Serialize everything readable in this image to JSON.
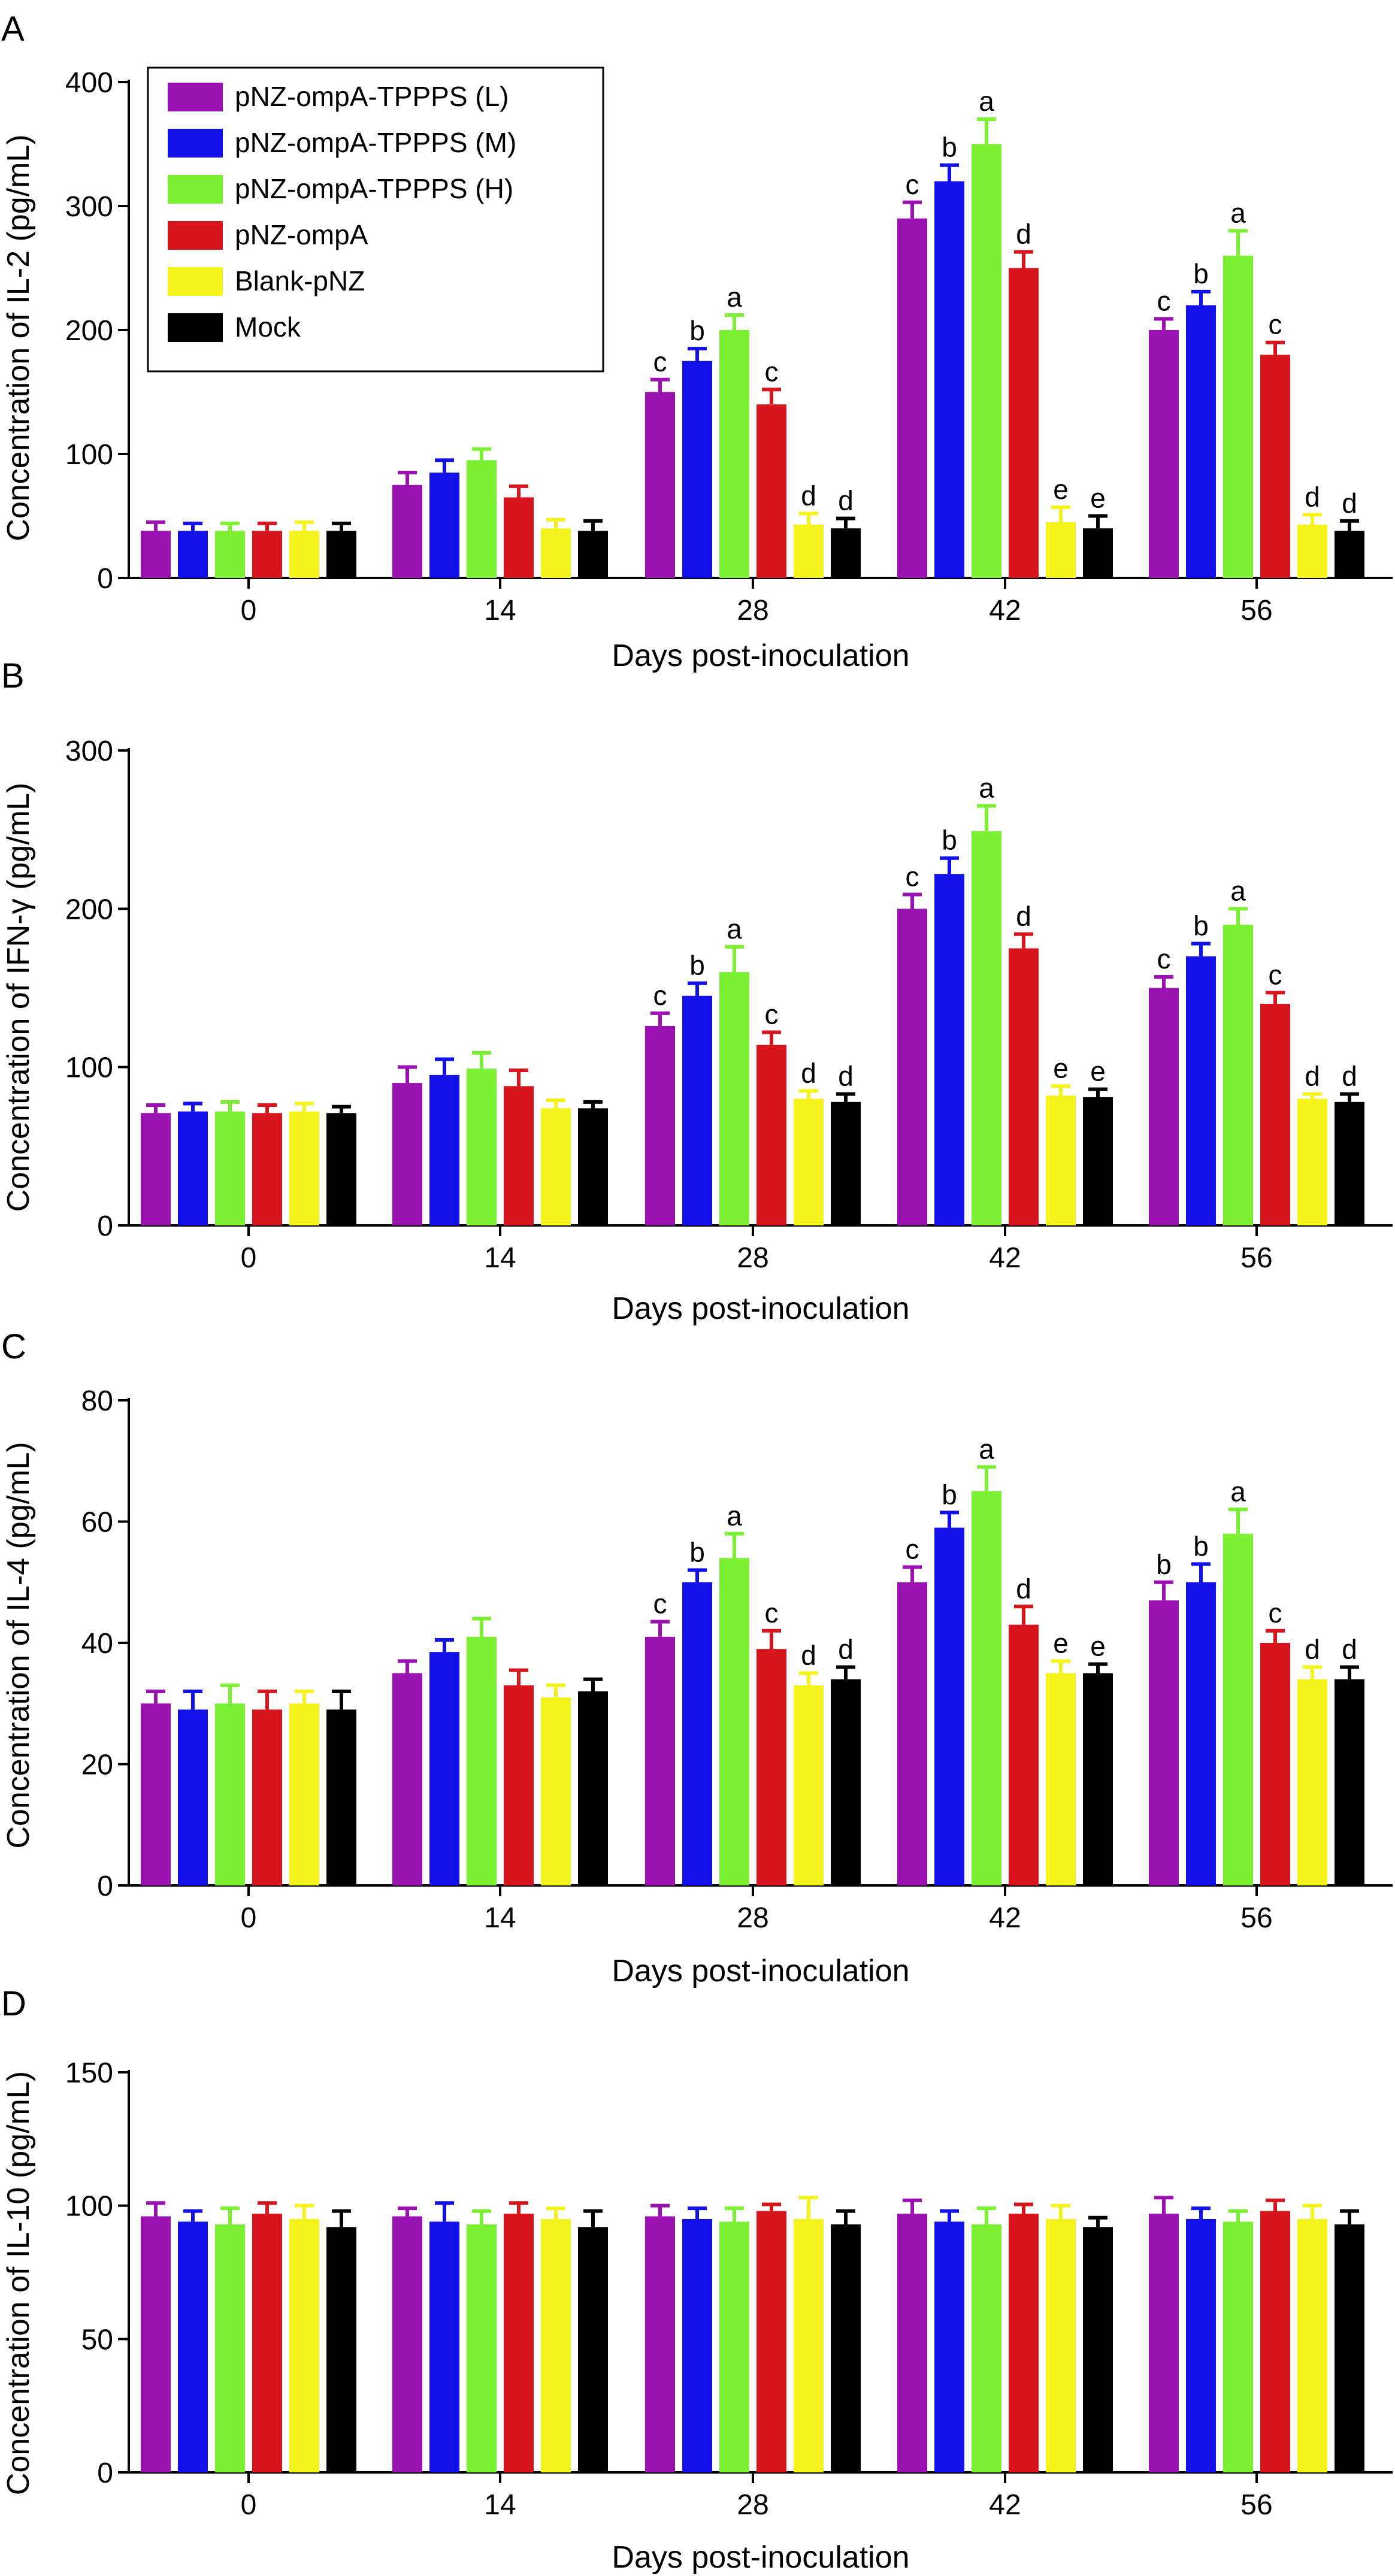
{
  "series_meta": [
    {
      "name": "pNZ-ompA-TPPPS (L)",
      "color": "#9b10b0"
    },
    {
      "name": "pNZ-ompA-TPPPS (M)",
      "color": "#1212e8"
    },
    {
      "name": "pNZ-ompA-TPPPS (H)",
      "color": "#7cf032"
    },
    {
      "name": "pNZ-ompA",
      "color": "#d6161c"
    },
    {
      "name": "Blank-pNZ",
      "color": "#f4f41c"
    },
    {
      "name": "Mock",
      "color": "#000000"
    }
  ],
  "chart_data": [
    {
      "type": "bar",
      "panel": "A",
      "title": "",
      "xlabel": "Days post-inoculation",
      "ylabel": "Concentration of IL-2 (pg/mL)",
      "ylim": [
        0,
        400
      ],
      "yticks": [
        0,
        100,
        200,
        300,
        400
      ],
      "categories": [
        "0",
        "14",
        "28",
        "42",
        "56"
      ],
      "legend": "top-left",
      "series": [
        {
          "name": "pNZ-ompA-TPPPS (L)",
          "values": [
            38,
            75,
            150,
            290,
            200
          ],
          "errors": [
            7,
            10,
            10,
            13,
            9
          ],
          "labels": [
            "",
            "",
            "c",
            "c",
            "c"
          ]
        },
        {
          "name": "pNZ-ompA-TPPPS (M)",
          "values": [
            38,
            85,
            175,
            320,
            220
          ],
          "errors": [
            6,
            10,
            10,
            13,
            11
          ],
          "labels": [
            "",
            "",
            "b",
            "b",
            "b"
          ]
        },
        {
          "name": "pNZ-ompA-TPPPS (H)",
          "values": [
            38,
            95,
            200,
            350,
            260
          ],
          "errors": [
            6,
            9,
            12,
            20,
            20
          ],
          "labels": [
            "",
            "",
            "a",
            "a",
            "a"
          ]
        },
        {
          "name": "pNZ-ompA",
          "values": [
            38,
            65,
            140,
            250,
            180
          ],
          "errors": [
            6,
            9,
            12,
            13,
            10
          ],
          "labels": [
            "",
            "",
            "c",
            "d",
            "c"
          ]
        },
        {
          "name": "Blank-pNZ",
          "values": [
            38,
            40,
            43,
            45,
            43
          ],
          "errors": [
            7,
            7,
            9,
            12,
            8
          ],
          "labels": [
            "",
            "",
            "d",
            "e",
            "d"
          ]
        },
        {
          "name": "Mock",
          "values": [
            38,
            38,
            40,
            40,
            38
          ],
          "errors": [
            6,
            8,
            8,
            10,
            8
          ],
          "labels": [
            "",
            "",
            "d",
            "e",
            "d"
          ]
        }
      ]
    },
    {
      "type": "bar",
      "panel": "B",
      "title": "",
      "xlabel": "Days post-inoculation",
      "ylabel": "Concentration of IFN-γ (pg/mL)",
      "ylim": [
        0,
        300
      ],
      "yticks": [
        0,
        100,
        200,
        300
      ],
      "categories": [
        "0",
        "14",
        "28",
        "42",
        "56"
      ],
      "legend": "none",
      "series": [
        {
          "name": "pNZ-ompA-TPPPS (L)",
          "values": [
            71,
            90,
            126,
            200,
            150
          ],
          "errors": [
            5,
            10,
            8,
            9,
            7
          ],
          "labels": [
            "",
            "",
            "c",
            "c",
            "c"
          ]
        },
        {
          "name": "pNZ-ompA-TPPPS (M)",
          "values": [
            72,
            95,
            145,
            222,
            170
          ],
          "errors": [
            5,
            10,
            8,
            10,
            8
          ],
          "labels": [
            "",
            "",
            "b",
            "b",
            "b"
          ]
        },
        {
          "name": "pNZ-ompA-TPPPS (H)",
          "values": [
            72,
            99,
            160,
            249,
            190
          ],
          "errors": [
            6,
            10,
            16,
            16,
            10
          ],
          "labels": [
            "",
            "",
            "a",
            "a",
            "a"
          ]
        },
        {
          "name": "pNZ-ompA",
          "values": [
            71,
            88,
            114,
            175,
            140
          ],
          "errors": [
            5,
            10,
            8,
            9,
            7
          ],
          "labels": [
            "",
            "",
            "c",
            "d",
            "c"
          ]
        },
        {
          "name": "Blank-pNZ",
          "values": [
            72,
            74,
            80,
            82,
            80
          ],
          "errors": [
            5,
            5,
            5,
            6,
            3
          ],
          "labels": [
            "",
            "",
            "d",
            "e",
            "d"
          ]
        },
        {
          "name": "Mock",
          "values": [
            71,
            74,
            78,
            81,
            78
          ],
          "errors": [
            4,
            4,
            5,
            5,
            5
          ],
          "labels": [
            "",
            "",
            "d",
            "e",
            "d"
          ]
        }
      ]
    },
    {
      "type": "bar",
      "panel": "C",
      "title": "",
      "xlabel": "Days post-inoculation",
      "ylabel": "Concentration of IL-4 (pg/mL)",
      "ylim": [
        0,
        80
      ],
      "yticks": [
        0,
        20,
        40,
        60,
        80
      ],
      "categories": [
        "0",
        "14",
        "28",
        "42",
        "56"
      ],
      "legend": "none",
      "series": [
        {
          "name": "pNZ-ompA-TPPPS (L)",
          "values": [
            30,
            35,
            41,
            50,
            47
          ],
          "errors": [
            2,
            2,
            2.5,
            2.5,
            3
          ],
          "labels": [
            "",
            "",
            "c",
            "c",
            "b"
          ]
        },
        {
          "name": "pNZ-ompA-TPPPS (M)",
          "values": [
            29,
            38.5,
            50,
            59,
            50
          ],
          "errors": [
            3,
            2,
            2,
            2.5,
            3
          ],
          "labels": [
            "",
            "",
            "b",
            "b",
            "b"
          ]
        },
        {
          "name": "pNZ-ompA-TPPPS (H)",
          "values": [
            30,
            41,
            54,
            65,
            58
          ],
          "errors": [
            3,
            3,
            4,
            4,
            4
          ],
          "labels": [
            "",
            "",
            "a",
            "a",
            "a"
          ]
        },
        {
          "name": "pNZ-ompA",
          "values": [
            29,
            33,
            39,
            43,
            40
          ],
          "errors": [
            3,
            2.5,
            3,
            3,
            2
          ],
          "labels": [
            "",
            "",
            "c",
            "d",
            "c"
          ]
        },
        {
          "name": "Blank-pNZ",
          "values": [
            30,
            31,
            33,
            35,
            34
          ],
          "errors": [
            2,
            2,
            2,
            2,
            2
          ],
          "labels": [
            "",
            "",
            "d",
            "e",
            "d"
          ]
        },
        {
          "name": "Mock",
          "values": [
            29,
            32,
            34,
            35,
            34
          ],
          "errors": [
            3,
            2,
            2,
            1.5,
            2
          ],
          "labels": [
            "",
            "",
            "d",
            "e",
            "d"
          ]
        }
      ]
    },
    {
      "type": "bar",
      "panel": "D",
      "title": "",
      "xlabel": "Days post-inoculation",
      "ylabel": "Concentration of IL-10 (pg/mL)",
      "ylim": [
        0,
        150
      ],
      "yticks": [
        0,
        50,
        100,
        150
      ],
      "categories": [
        "0",
        "14",
        "28",
        "42",
        "56"
      ],
      "legend": "none",
      "series": [
        {
          "name": "pNZ-ompA-TPPPS (L)",
          "values": [
            96,
            96,
            96,
            97,
            97
          ],
          "errors": [
            5,
            3,
            4,
            5,
            6
          ],
          "labels": [
            "",
            "",
            "",
            "",
            ""
          ]
        },
        {
          "name": "pNZ-ompA-TPPPS (M)",
          "values": [
            94,
            94,
            95,
            94,
            95
          ],
          "errors": [
            4,
            7,
            4,
            4,
            4
          ],
          "labels": [
            "",
            "",
            "",
            "",
            ""
          ]
        },
        {
          "name": "pNZ-ompA-TPPPS (H)",
          "values": [
            93,
            93,
            94,
            93,
            94
          ],
          "errors": [
            6,
            5,
            5,
            6,
            4
          ],
          "labels": [
            "",
            "",
            "",
            "",
            ""
          ]
        },
        {
          "name": "pNZ-ompA",
          "values": [
            97,
            97,
            98,
            97,
            98
          ],
          "errors": [
            4,
            4,
            2.5,
            3.5,
            4
          ],
          "labels": [
            "",
            "",
            "",
            "",
            ""
          ]
        },
        {
          "name": "Blank-pNZ",
          "values": [
            95,
            95,
            95,
            95,
            95
          ],
          "errors": [
            5,
            4,
            8,
            5,
            5
          ],
          "labels": [
            "",
            "",
            "",
            "",
            ""
          ]
        },
        {
          "name": "Mock",
          "values": [
            92,
            92,
            93,
            92,
            93
          ],
          "errors": [
            6,
            6,
            5,
            3.5,
            5
          ],
          "labels": [
            "",
            "",
            "",
            "",
            ""
          ]
        }
      ]
    }
  ]
}
